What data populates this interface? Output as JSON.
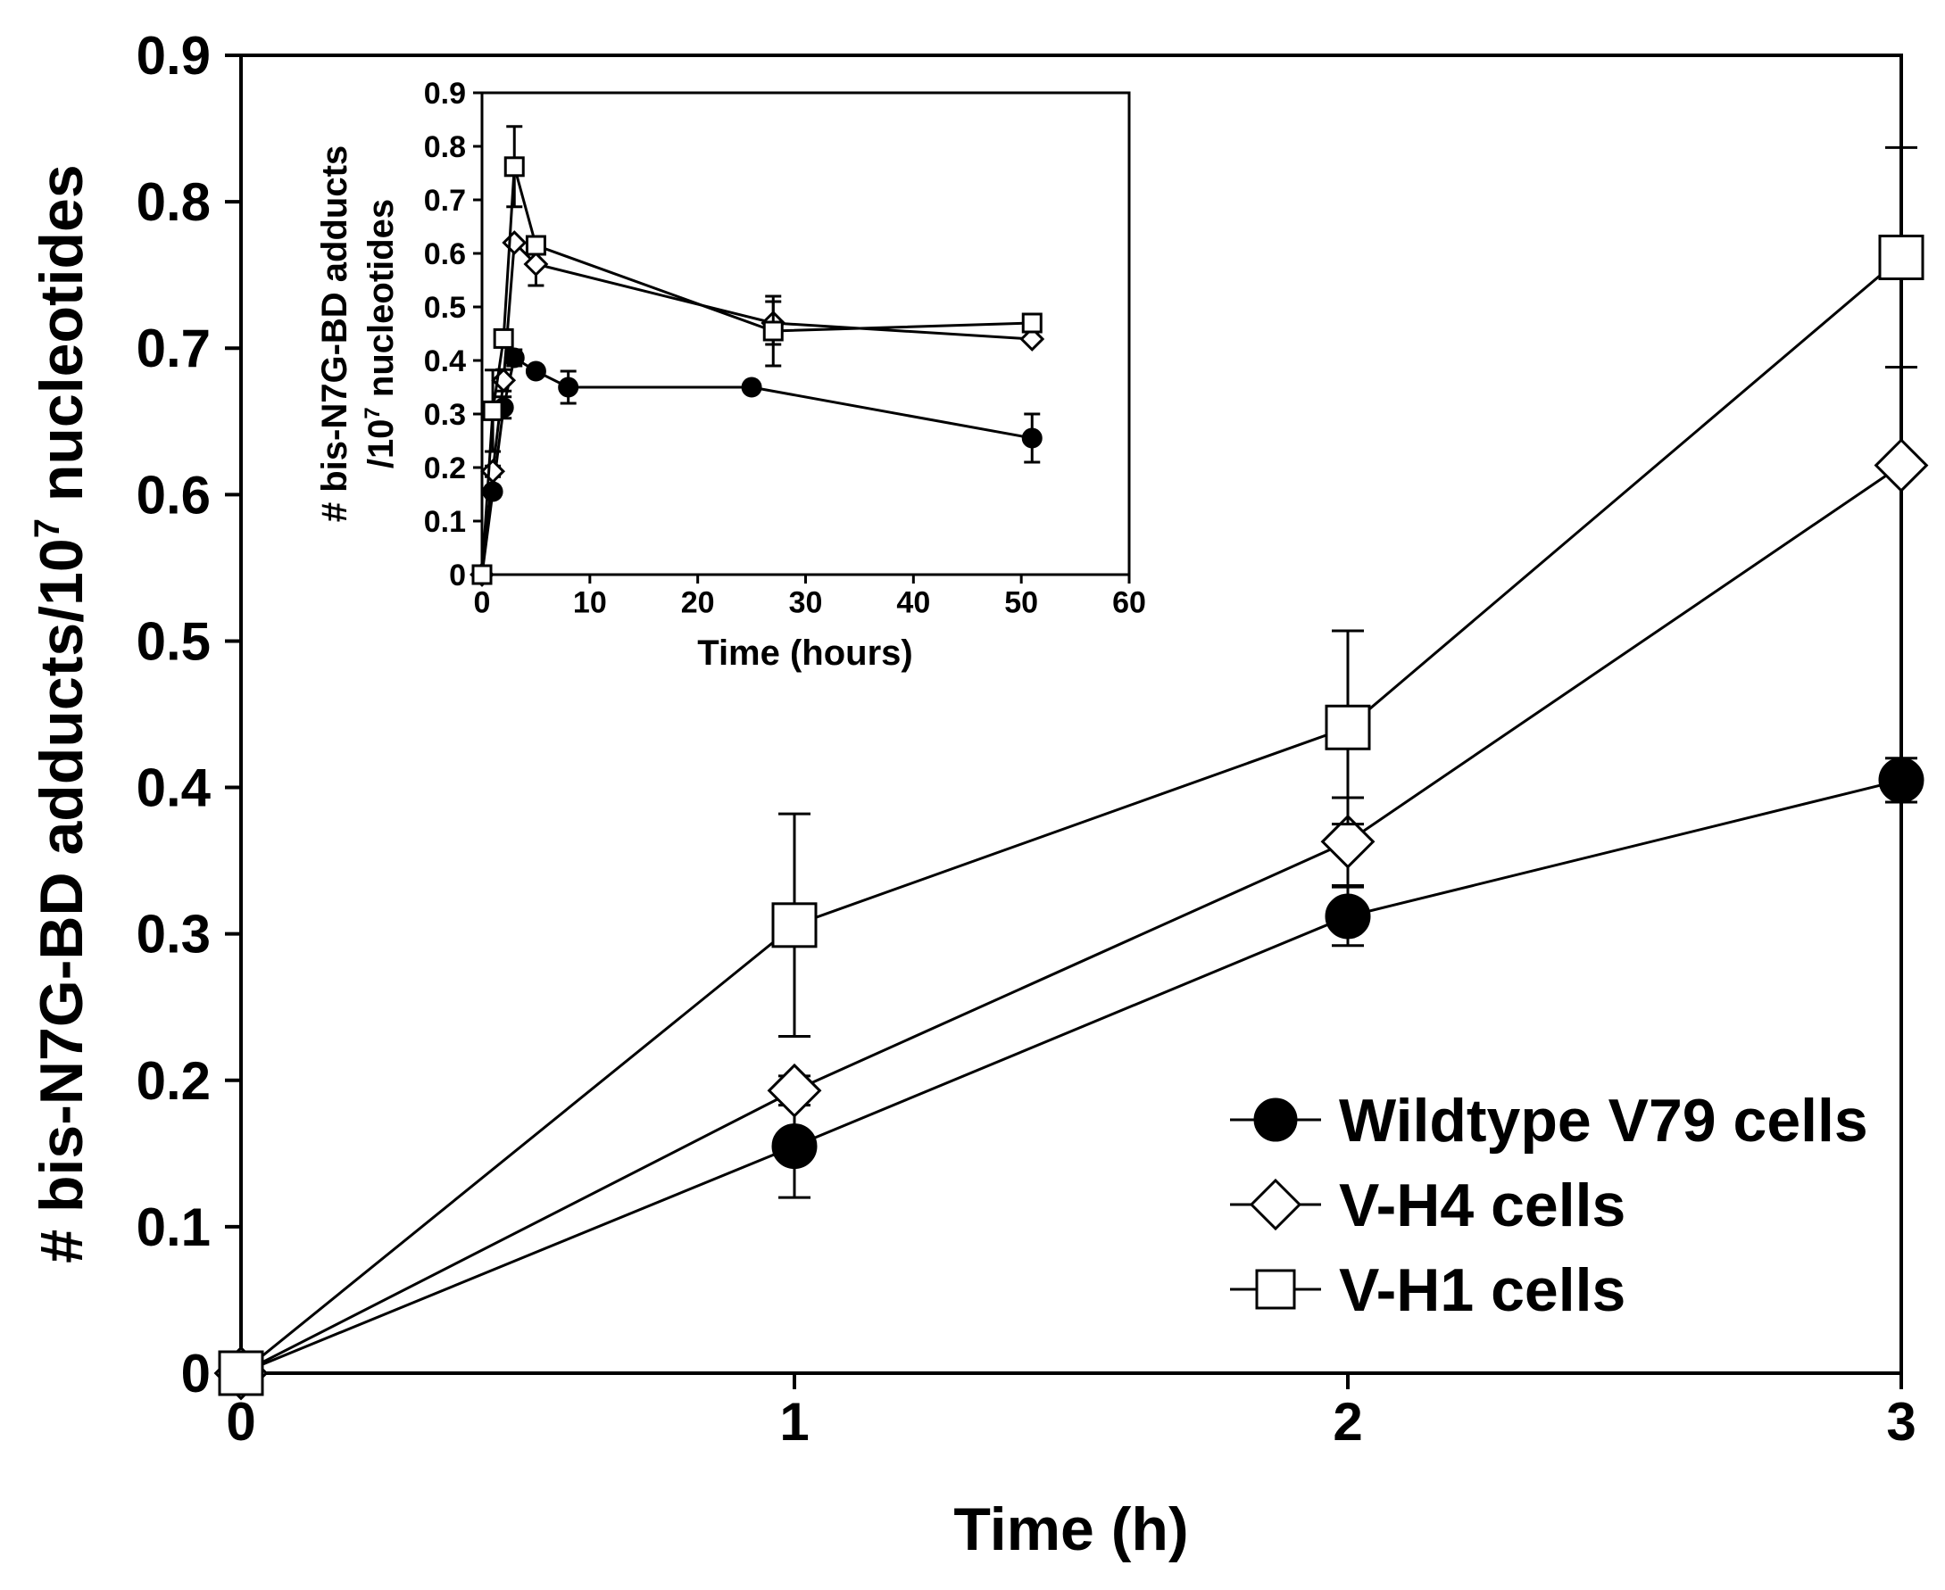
{
  "chart_data": [
    {
      "name": "main",
      "type": "line",
      "xlabel": "Time (h)",
      "ylabel_main": "# bis-N7G-BD adducts/10",
      "ylabel_exp": "7",
      "ylabel_end": " nucleotides",
      "xlim": [
        0,
        3
      ],
      "ylim": [
        0,
        0.9
      ],
      "xticks": [
        0,
        1,
        2,
        3
      ],
      "xtick_labels": [
        "0",
        "1",
        "2",
        "3"
      ],
      "yticks": [
        0,
        0.1,
        0.2,
        0.3,
        0.4,
        0.5,
        0.6,
        0.7,
        0.8,
        0.9
      ],
      "ytick_labels": [
        "0",
        "0.1",
        "0.2",
        "0.3",
        "0.4",
        "0.5",
        "0.6",
        "0.7",
        "0.8",
        "0.9"
      ],
      "legend_position": "bottom-right",
      "series": [
        {
          "name": "Wildtype V79 cells",
          "marker": "circle",
          "x": [
            0,
            1,
            2,
            3
          ],
          "values": [
            0,
            0.155,
            0.312,
            0.405
          ],
          "errors": [
            0,
            0.035,
            0.02,
            0.015
          ]
        },
        {
          "name": "V-H4 cells",
          "marker": "diamond",
          "x": [
            0,
            1,
            2,
            3
          ],
          "values": [
            0,
            0.193,
            0.363,
            0.62
          ],
          "errors": [
            0,
            0.01,
            0.03,
            0.0
          ]
        },
        {
          "name": "V-H1 cells",
          "marker": "square",
          "x": [
            0,
            1,
            2,
            3
          ],
          "values": [
            0,
            0.306,
            0.441,
            0.762
          ],
          "errors": [
            0,
            0.076,
            0.066,
            0.075
          ]
        }
      ]
    },
    {
      "name": "inset",
      "type": "line",
      "xlabel": "Time (hours)",
      "ylabel_line1": "# bis-N7G-BD adducts",
      "ylabel_line2_pre": "/10",
      "ylabel_line2_exp": "7",
      "ylabel_line2_post": " nucleotides",
      "xlim": [
        0,
        60
      ],
      "ylim": [
        0,
        0.9
      ],
      "xticks": [
        0,
        10,
        20,
        30,
        40,
        50,
        60
      ],
      "xtick_labels": [
        "0",
        "10",
        "20",
        "30",
        "40",
        "50",
        "60"
      ],
      "yticks": [
        0,
        0.1,
        0.2,
        0.3,
        0.4,
        0.5,
        0.6,
        0.7,
        0.8,
        0.9
      ],
      "ytick_labels": [
        "0",
        "0.1",
        "0.2",
        "0.3",
        "0.4",
        "0.5",
        "0.6",
        "0.7",
        "0.8",
        "0.9"
      ],
      "series": [
        {
          "name": "Wildtype V79 cells",
          "marker": "circle",
          "x": [
            0,
            1,
            2,
            3,
            5,
            8,
            25,
            51
          ],
          "values": [
            0,
            0.155,
            0.312,
            0.405,
            0.38,
            0.35,
            0.35,
            0.255
          ],
          "errors": [
            0,
            0.01,
            0.02,
            0.015,
            0.01,
            0.03,
            0.0,
            0.045
          ]
        },
        {
          "name": "V-H4 cells",
          "marker": "diamond",
          "x": [
            0,
            1,
            2,
            3,
            5,
            27,
            51
          ],
          "values": [
            0,
            0.193,
            0.363,
            0.62,
            0.58,
            0.47,
            0.44
          ],
          "errors": [
            0,
            0.01,
            0.02,
            0.0,
            0.04,
            0.04,
            0.0
          ]
        },
        {
          "name": "V-H1 cells",
          "marker": "square",
          "x": [
            0,
            1,
            2,
            3,
            5,
            27,
            51
          ],
          "values": [
            0,
            0.306,
            0.441,
            0.762,
            0.615,
            0.455,
            0.47
          ],
          "errors": [
            0,
            0.076,
            0.0,
            0.075,
            0.0,
            0.065,
            0.0
          ]
        }
      ]
    }
  ]
}
